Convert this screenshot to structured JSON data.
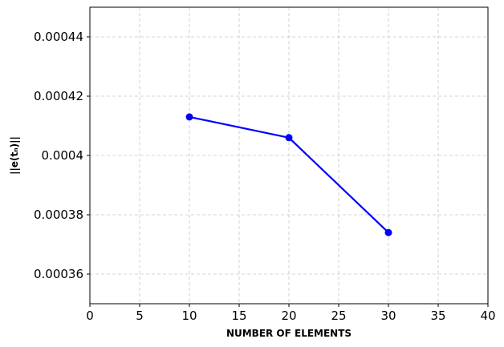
{
  "chart_data": {
    "type": "line",
    "title": "",
    "xlabel": "NUMBER OF ELEMENTS",
    "ylabel": "||e(tₙ)||",
    "xlim": [
      0,
      40
    ],
    "ylim": [
      0.00035,
      0.00045
    ],
    "x_ticks": [
      0,
      5,
      10,
      15,
      20,
      25,
      30,
      35,
      40
    ],
    "x_tick_labels": [
      "0",
      "5",
      "10",
      "15",
      "20",
      "25",
      "30",
      "35",
      "40"
    ],
    "y_ticks": [
      0.00036,
      0.00038,
      0.0004,
      0.00042,
      0.00044
    ],
    "y_tick_labels": [
      "0.00036",
      "0.00038",
      "0.0004",
      "0.00042",
      "0.00044"
    ],
    "grid": true,
    "series": [
      {
        "x": [
          10,
          20,
          30
        ],
        "values": [
          0.000413,
          0.000406,
          0.000374
        ],
        "color": "#0000ff",
        "marker": "circle"
      }
    ]
  }
}
